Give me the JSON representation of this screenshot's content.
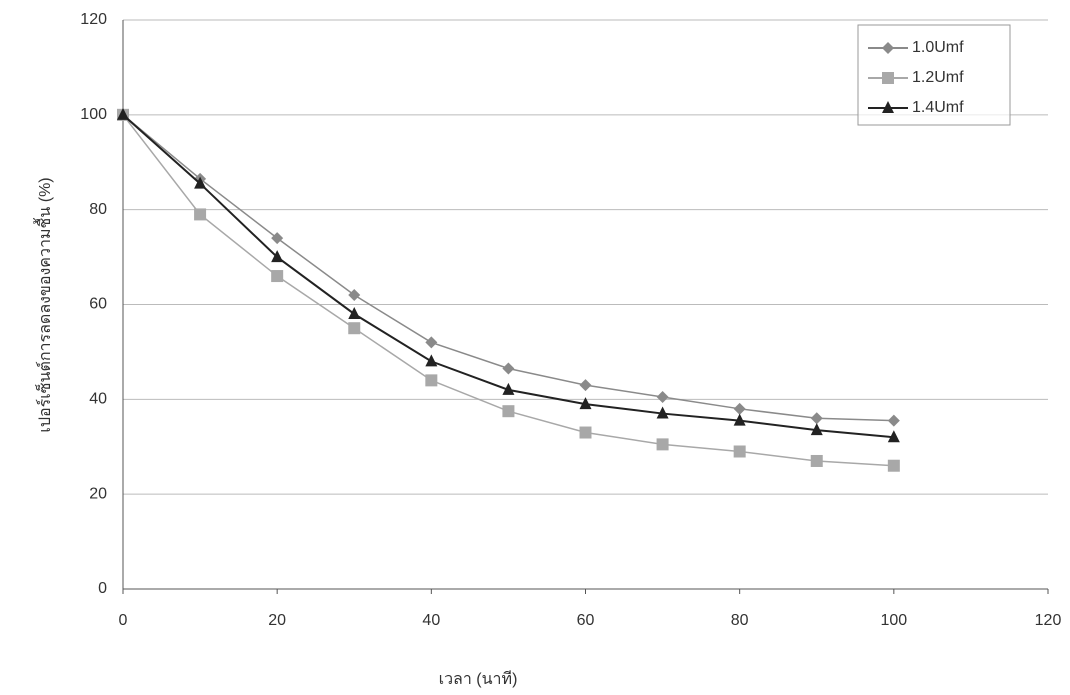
{
  "chart_data": {
    "type": "line",
    "x_label": "เวลา (นาที)",
    "y_label": "เปอร์เซ็นต์การลดลงของความชื้น (%)",
    "x": [
      0,
      10,
      20,
      30,
      40,
      50,
      60,
      70,
      80,
      90,
      100
    ],
    "series": [
      {
        "name": "1.0Umf",
        "color": "#8a8a8a",
        "marker": "diamond",
        "values": [
          100,
          86.5,
          74,
          62,
          52,
          46.5,
          43,
          40.5,
          38,
          36,
          35.5
        ]
      },
      {
        "name": "1.2Umf",
        "color": "#a8a8a8",
        "marker": "square",
        "values": [
          100,
          79,
          66,
          55,
          44,
          37.5,
          33,
          30.5,
          29,
          27,
          26
        ]
      },
      {
        "name": "1.4Umf",
        "color": "#222222",
        "marker": "triangle",
        "values": [
          100,
          85.5,
          70,
          58,
          48,
          42,
          39,
          37,
          35.5,
          33.5,
          32
        ]
      }
    ],
    "xlim": [
      0,
      120
    ],
    "xticks": [
      0,
      20,
      40,
      60,
      80,
      100,
      120
    ],
    "ylim": [
      0,
      120
    ],
    "yticks": [
      0,
      20,
      40,
      60,
      80,
      100,
      120
    ],
    "grid": true,
    "legend": "top-right"
  }
}
